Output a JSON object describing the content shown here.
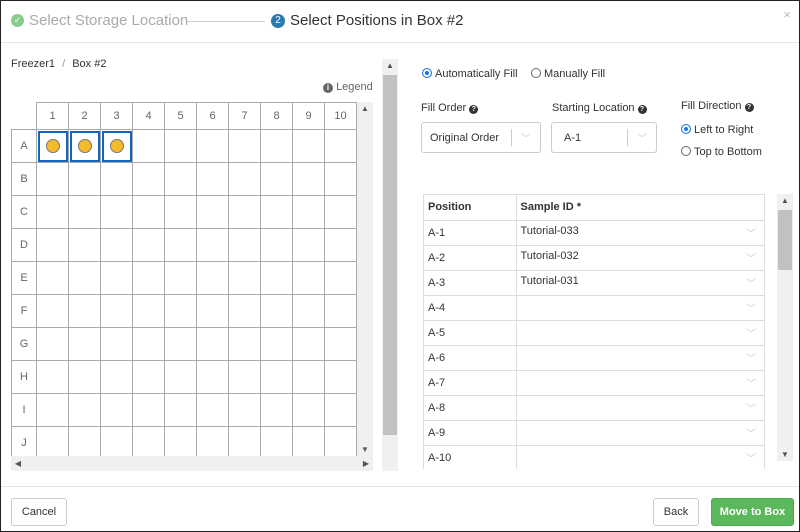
{
  "header": {
    "step1": "Select Storage Location",
    "step2_number": "2",
    "step2": "Select Positions in Box #2",
    "close": "×"
  },
  "breadcrumb": {
    "freezer": "Freezer1",
    "sep": "/",
    "box": "Box #2"
  },
  "legend": "Legend",
  "grid": {
    "columns": [
      "1",
      "2",
      "3",
      "4",
      "5",
      "6",
      "7",
      "8",
      "9",
      "10"
    ],
    "rows": [
      "A",
      "B",
      "C",
      "D",
      "E",
      "F",
      "G",
      "H",
      "I",
      "J"
    ],
    "filled": [
      "A-1",
      "A-2",
      "A-3"
    ],
    "fill_color": "#f6bb2b",
    "selected_color": "#1565c0"
  },
  "fill_mode": {
    "auto": "Automatically Fill",
    "manual": "Manually Fill",
    "selected": "auto"
  },
  "fill_order": {
    "label": "Fill Order",
    "value": "Original Order"
  },
  "starting_location": {
    "label": "Starting Location",
    "value": "A-1"
  },
  "fill_direction": {
    "label": "Fill Direction",
    "left_to_right": "Left to Right",
    "top_to_bottom": "Top to Bottom",
    "selected": "left_to_right"
  },
  "table": {
    "headers": [
      "Position",
      "Sample ID  *"
    ],
    "rows": [
      {
        "position": "A-1",
        "sample": "Tutorial-033"
      },
      {
        "position": "A-2",
        "sample": "Tutorial-032"
      },
      {
        "position": "A-3",
        "sample": "Tutorial-031"
      },
      {
        "position": "A-4",
        "sample": ""
      },
      {
        "position": "A-5",
        "sample": ""
      },
      {
        "position": "A-6",
        "sample": ""
      },
      {
        "position": "A-7",
        "sample": ""
      },
      {
        "position": "A-8",
        "sample": ""
      },
      {
        "position": "A-9",
        "sample": ""
      },
      {
        "position": "A-10",
        "sample": ""
      },
      {
        "position": "",
        "sample": ""
      }
    ]
  },
  "footer": {
    "cancel": "Cancel",
    "back": "Back",
    "move": "Move to Box"
  }
}
